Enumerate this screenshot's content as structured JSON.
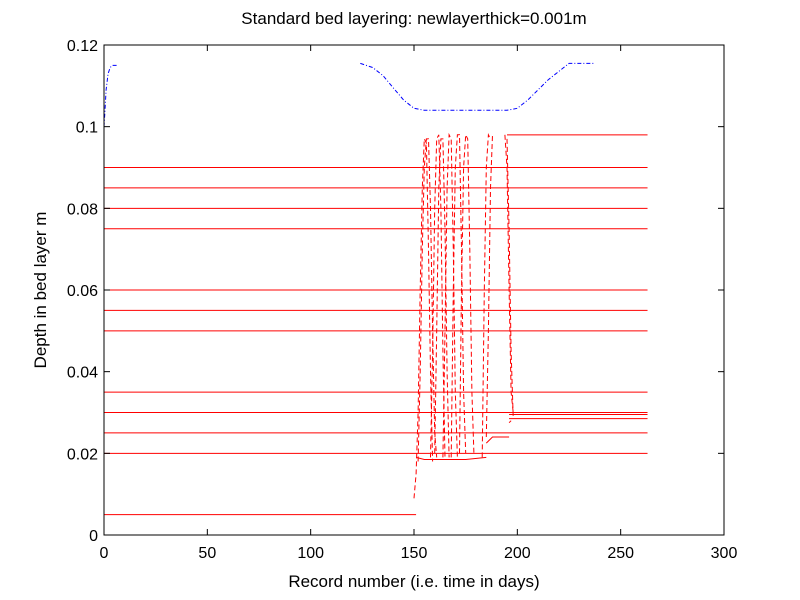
{
  "chart_data": {
    "type": "line",
    "title": "Standard bed layering: newlayerthick=0.001m",
    "xlabel": "Record number (i.e. time in days)",
    "ylabel": "Depth in bed layer m",
    "xlim": [
      0,
      300
    ],
    "ylim": [
      0,
      0.12
    ],
    "x_ticks": [
      0,
      50,
      100,
      150,
      200,
      250,
      300
    ],
    "x_tick_labels": [
      "0",
      "50",
      "100",
      "150",
      "200",
      "250",
      "300"
    ],
    "y_ticks": [
      0,
      0.02,
      0.04,
      0.06,
      0.08,
      0.1,
      0.12
    ],
    "y_tick_labels": [
      "0",
      "0.02",
      "0.04",
      "0.06",
      "0.08",
      "0.1",
      "0.12"
    ],
    "grid": false,
    "colors": {
      "surface": "#0000ff",
      "layers": "#ff0000",
      "axes": "#000000"
    },
    "series": [
      {
        "color": "#0000ff",
        "style": "dashdot",
        "segments": [
          [
            [
              0,
              0.1
            ],
            [
              0.5,
              0.104
            ],
            [
              1,
              0.109
            ],
            [
              2,
              0.113
            ],
            [
              3,
              0.1145
            ],
            [
              4,
              0.115
            ],
            [
              7,
              0.115
            ]
          ],
          [
            [
              124,
              0.1155
            ],
            [
              130,
              0.1145
            ],
            [
              135,
              0.1125
            ],
            [
              140,
              0.1095
            ],
            [
              145,
              0.1065
            ],
            [
              150,
              0.1045
            ],
            [
              155,
              0.104
            ],
            [
              185,
              0.104
            ],
            [
              195,
              0.104
            ],
            [
              200,
              0.1045
            ],
            [
              205,
              0.1065
            ],
            [
              210,
              0.109
            ],
            [
              215,
              0.1115
            ],
            [
              220,
              0.1135
            ],
            [
              225,
              0.1155
            ],
            [
              230,
              0.1155
            ],
            [
              237,
              0.1155
            ]
          ]
        ]
      },
      {
        "color": "#ff0000",
        "style": "solid",
        "hlines": [
          {
            "y": 0.09,
            "x": [
              0,
              263
            ]
          },
          {
            "y": 0.085,
            "x": [
              0,
              263
            ]
          },
          {
            "y": 0.08,
            "x": [
              0,
              263
            ]
          },
          {
            "y": 0.075,
            "x": [
              0,
              263
            ]
          },
          {
            "y": 0.06,
            "x": [
              0,
              263
            ]
          },
          {
            "y": 0.055,
            "x": [
              0,
              263
            ]
          },
          {
            "y": 0.05,
            "x": [
              0,
              263
            ]
          },
          {
            "y": 0.035,
            "x": [
              0,
              263
            ]
          },
          {
            "y": 0.03,
            "x": [
              0,
              263
            ]
          },
          {
            "y": 0.025,
            "x": [
              0,
              263
            ]
          },
          {
            "y": 0.02,
            "x": [
              0,
              263
            ]
          },
          {
            "y": 0.005,
            "x": [
              0,
              151
            ]
          },
          {
            "y": 0.098,
            "x": [
              195,
              263
            ]
          },
          {
            "y": 0.0295,
            "x": [
              196,
              263
            ]
          },
          {
            "y": 0.0285,
            "x": [
              196,
              263
            ]
          }
        ]
      },
      {
        "color": "#ff0000",
        "style": "dashed",
        "segments": [
          [
            [
              150,
              0.009
            ],
            [
              151,
              0.015
            ],
            [
              152,
              0.03
            ],
            [
              153,
              0.06
            ],
            [
              154,
              0.085
            ],
            [
              155,
              0.097
            ],
            [
              156,
              0.096
            ],
            [
              157,
              0.07
            ],
            [
              158,
              0.04
            ],
            [
              159,
              0.018
            ]
          ],
          [
            [
              152,
              0.018
            ],
            [
              153,
              0.04
            ],
            [
              154,
              0.07
            ],
            [
              155,
              0.09
            ],
            [
              156,
              0.097
            ],
            [
              157,
              0.097
            ],
            [
              158,
              0.08
            ],
            [
              159,
              0.05
            ],
            [
              160,
              0.025
            ],
            [
              161,
              0.019
            ]
          ],
          [
            [
              158,
              0.019
            ],
            [
              159,
              0.045
            ],
            [
              160,
              0.08
            ],
            [
              161,
              0.097
            ],
            [
              162,
              0.098
            ],
            [
              163,
              0.08
            ],
            [
              164,
              0.045
            ],
            [
              165,
              0.019
            ]
          ],
          [
            [
              160,
              0.02
            ],
            [
              161,
              0.05
            ],
            [
              162,
              0.085
            ],
            [
              163,
              0.097
            ],
            [
              164,
              0.097
            ],
            [
              165,
              0.075
            ],
            [
              166,
              0.04
            ],
            [
              167,
              0.019
            ]
          ],
          [
            [
              164,
              0.019
            ],
            [
              165,
              0.05
            ],
            [
              166,
              0.085
            ],
            [
              167,
              0.098
            ],
            [
              168,
              0.097
            ],
            [
              169,
              0.07
            ],
            [
              170,
              0.035
            ],
            [
              171,
              0.019
            ]
          ],
          [
            [
              168,
              0.019
            ],
            [
              169,
              0.06
            ],
            [
              170,
              0.09
            ],
            [
              171,
              0.098
            ],
            [
              172,
              0.098
            ],
            [
              173,
              0.07
            ],
            [
              174,
              0.035
            ],
            [
              175,
              0.02
            ]
          ],
          [
            [
              172,
              0.02
            ],
            [
              173,
              0.06
            ],
            [
              174,
              0.09
            ],
            [
              175,
              0.098
            ],
            [
              176,
              0.097
            ],
            [
              177,
              0.07
            ],
            [
              178,
              0.035
            ],
            [
              179,
              0.02
            ]
          ],
          [
            [
              183,
              0.019
            ],
            [
              184,
              0.06
            ],
            [
              185,
              0.09
            ],
            [
              186,
              0.098
            ],
            [
              187,
              0.097
            ]
          ],
          [
            [
              185,
              0.024
            ],
            [
              186,
              0.05
            ],
            [
              187,
              0.085
            ],
            [
              188,
              0.098
            ]
          ],
          [
            [
              194,
              0.098
            ],
            [
              195,
              0.09
            ],
            [
              196,
              0.06
            ],
            [
              197,
              0.035
            ],
            [
              198,
              0.03
            ]
          ],
          [
            [
              195,
              0.097
            ],
            [
              196,
              0.075
            ],
            [
              197,
              0.045
            ],
            [
              198,
              0.029
            ]
          ]
        ]
      },
      {
        "color": "#ff0000",
        "style": "solid",
        "segments": [
          [
            [
              151,
              0.019
            ],
            [
              155,
              0.0185
            ],
            [
              165,
              0.0185
            ],
            [
              175,
              0.0185
            ],
            [
              185,
              0.019
            ]
          ],
          [
            [
              185,
              0.0225
            ],
            [
              188,
              0.024
            ],
            [
              196,
              0.024
            ]
          ],
          [
            [
              196,
              0.0275
            ],
            [
              197,
              0.028
            ]
          ]
        ]
      }
    ]
  }
}
